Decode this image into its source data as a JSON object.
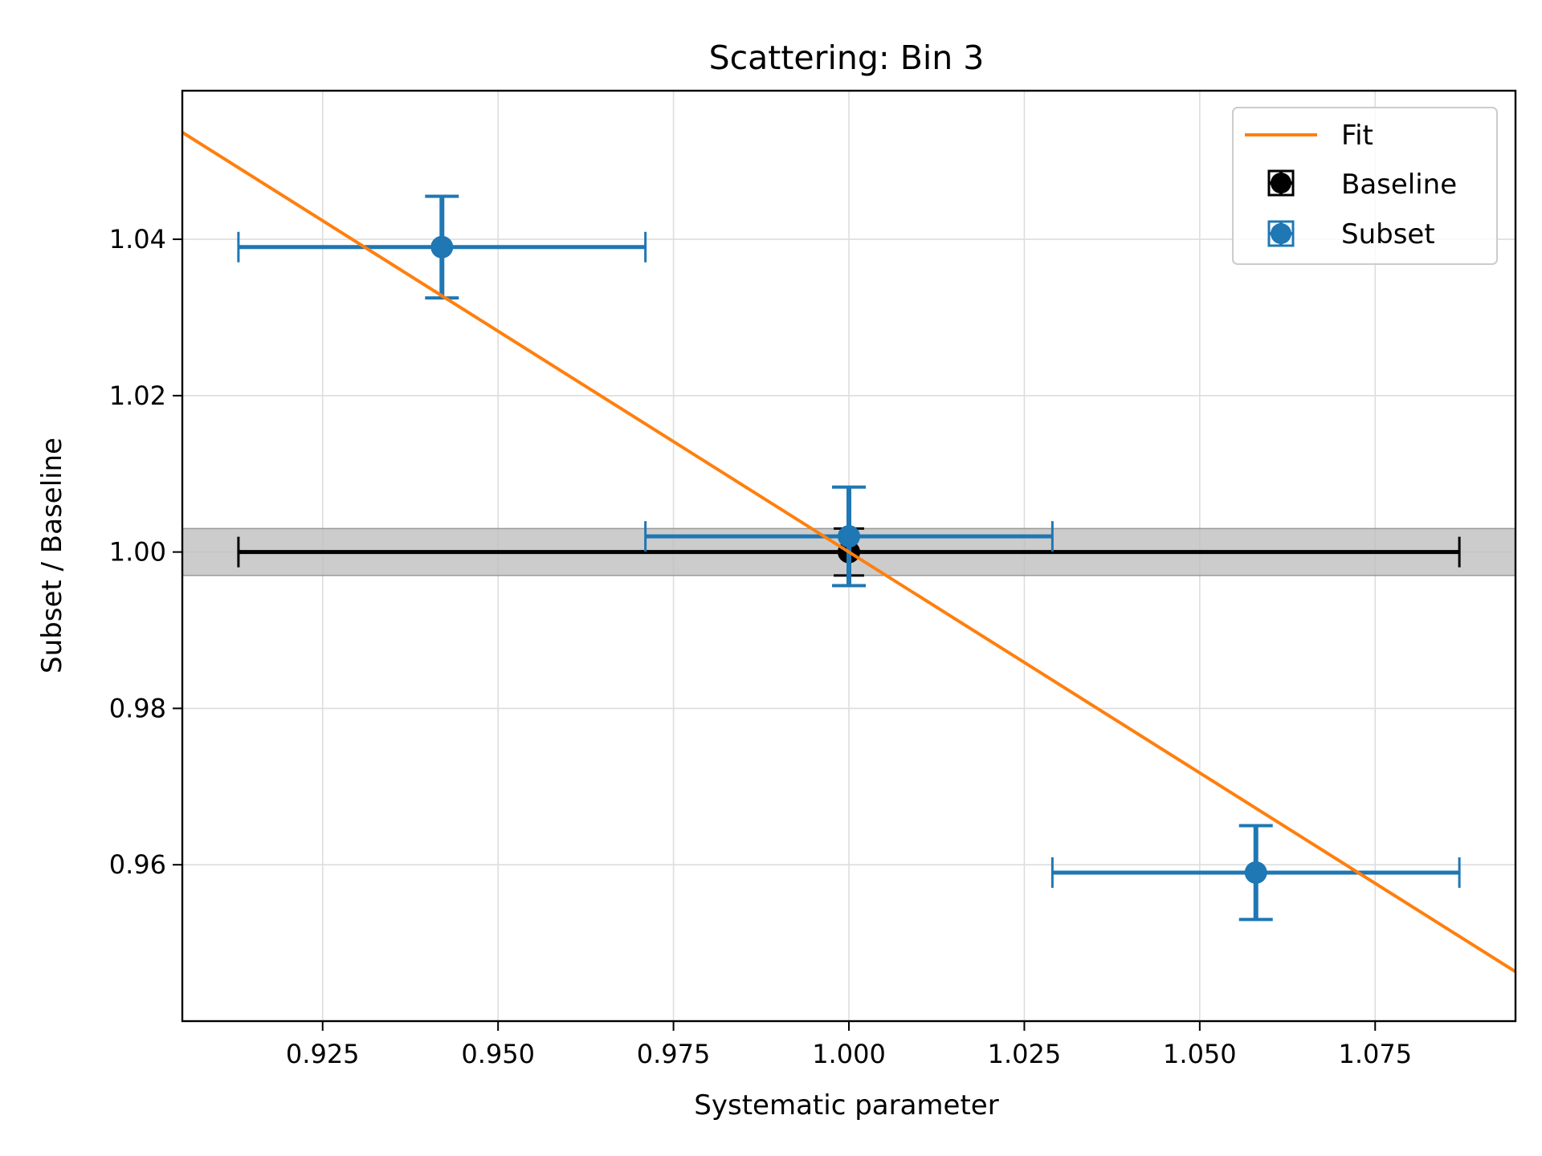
{
  "chart_data": {
    "type": "scatter",
    "title": "Scattering: Bin 3",
    "xlabel": "Systematic parameter",
    "ylabel": "Subset / Baseline",
    "xlim": [
      0.905,
      1.095
    ],
    "ylim": [
      0.94,
      1.059
    ],
    "xticks": [
      0.925,
      0.95,
      0.975,
      1.0,
      1.025,
      1.05,
      1.075
    ],
    "xtick_labels": [
      "0.925",
      "0.950",
      "0.975",
      "1.000",
      "1.025",
      "1.050",
      "1.075"
    ],
    "yticks": [
      0.96,
      0.98,
      1.0,
      1.02,
      1.04
    ],
    "ytick_labels": [
      "0.96",
      "0.98",
      "1.00",
      "1.02",
      "1.04"
    ],
    "grid": true,
    "legend_position": "top-right",
    "legend": [
      "Fit",
      "Baseline",
      "Subset"
    ],
    "colors": {
      "fit": "#ff7f0e",
      "baseline": "#000000",
      "subset": "#1f77b4",
      "band": "#bfbfbf"
    },
    "band": {
      "y_low": 0.997,
      "y_high": 1.003
    },
    "fit": {
      "name": "Fit",
      "slope": -0.565,
      "intercept": 1.565
    },
    "baseline": {
      "name": "Baseline",
      "x": 1.0,
      "y": 1.0,
      "xerr_low": 0.913,
      "xerr_high": 1.087,
      "yerr": 0.003
    },
    "subset": {
      "name": "Subset",
      "points": [
        {
          "x": 0.942,
          "y": 1.039,
          "xerr_low": 0.913,
          "xerr_high": 0.971,
          "yerr": 0.0065
        },
        {
          "x": 1.0,
          "y": 1.002,
          "xerr_low": 0.971,
          "xerr_high": 1.029,
          "yerr": 0.0063
        },
        {
          "x": 1.058,
          "y": 0.959,
          "xerr_low": 1.029,
          "xerr_high": 1.087,
          "yerr": 0.006
        }
      ]
    }
  }
}
